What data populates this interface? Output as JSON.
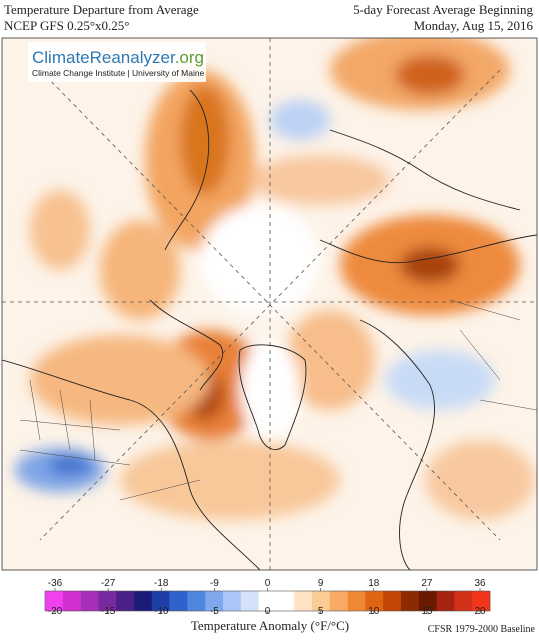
{
  "header": {
    "title_left": [
      "Temperature Departure from Average",
      "NCEP GFS 0.25°x0.25°"
    ],
    "title_right": [
      "5-day Forecast Average Beginning",
      "Monday, Aug 15, 2016"
    ]
  },
  "logo": {
    "name_a": "ClimateReanalyzer",
    "name_b": ".org",
    "subtitle": "Climate Change Institute | University of Maine"
  },
  "colorbar": {
    "ticks_f": [
      -36,
      -27,
      -18,
      -9,
      0,
      9,
      18,
      27,
      36
    ],
    "ticks_c": [
      -20,
      -15,
      -10,
      -5,
      0,
      5,
      10,
      15,
      20
    ],
    "colors": [
      "#f040f0",
      "#d030d0",
      "#a830b8",
      "#7a2aa0",
      "#4a1f88",
      "#1c1c78",
      "#1f3fa8",
      "#2f62cc",
      "#4f86e0",
      "#7fa9ee",
      "#a9c6f6",
      "#d3e2fa",
      "#ffffff",
      "#ffffff",
      "#fde3c4",
      "#fbcb94",
      "#f8ab62",
      "#ef8733",
      "#e06512",
      "#c24704",
      "#8c2a02",
      "#6a1800",
      "#a52310",
      "#d3321a",
      "#f2361c"
    ],
    "label": "Temperature Anomaly (°F/°C)"
  },
  "footer": {
    "baseline": "CFSR 1979-2000 Baseline"
  }
}
